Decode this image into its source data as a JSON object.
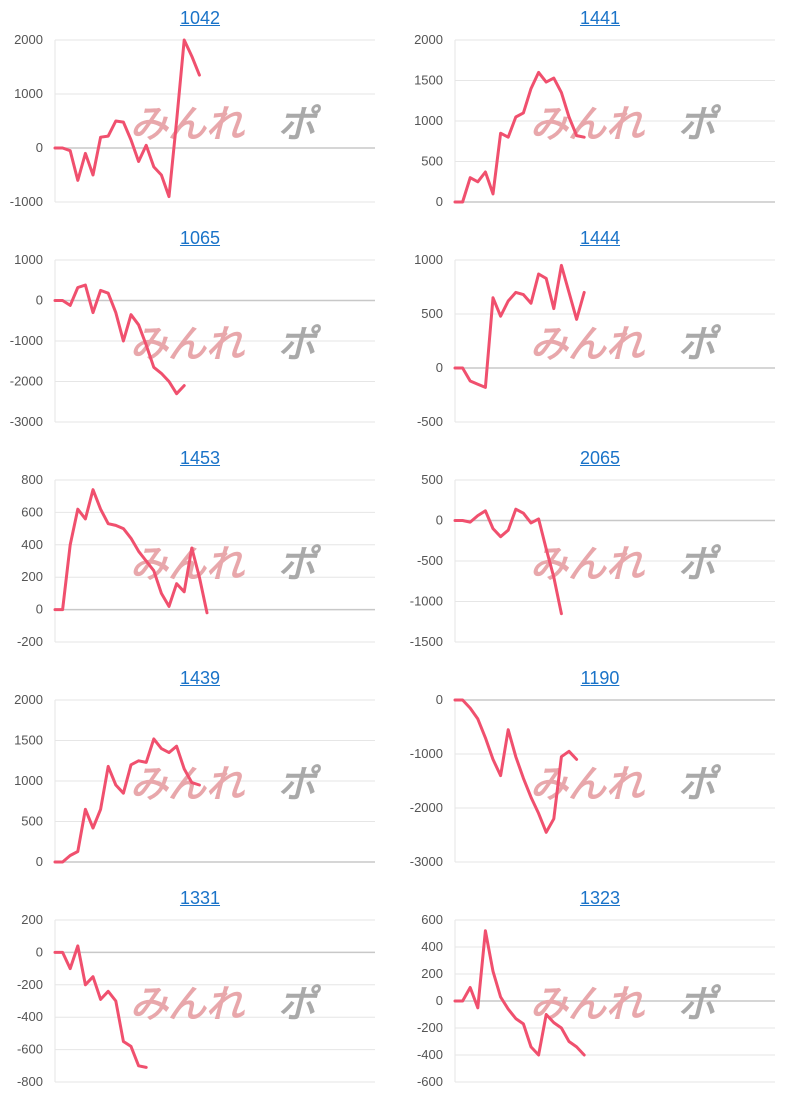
{
  "colors": {
    "line": "#f0506e",
    "grid": "#e6e6e6",
    "zero": "#c8c8c8",
    "title": "#1a73c8"
  },
  "watermark": {
    "part1": "みんれ",
    "part2": "ポ"
  },
  "chart_data": [
    {
      "type": "line",
      "title": "1042",
      "ylim": [
        -1000,
        2000
      ],
      "ticks": [
        2000,
        1000,
        0,
        -1000
      ],
      "values": [
        0,
        0,
        -50,
        -600,
        -100,
        -500,
        200,
        220,
        500,
        480,
        150,
        -250,
        50,
        -350,
        -500,
        -900,
        500,
        2000,
        1700,
        1350
      ]
    },
    {
      "type": "line",
      "title": "1441",
      "ylim": [
        0,
        2000
      ],
      "ticks": [
        2000,
        1500,
        1000,
        500,
        0
      ],
      "values": [
        0,
        0,
        300,
        250,
        370,
        100,
        850,
        800,
        1050,
        1100,
        1400,
        1600,
        1480,
        1530,
        1350,
        1050,
        820,
        800
      ]
    },
    {
      "type": "line",
      "title": "1065",
      "ylim": [
        -3000,
        1000
      ],
      "ticks": [
        1000,
        0,
        -1000,
        -2000,
        -3000
      ],
      "values": [
        0,
        0,
        -120,
        320,
        380,
        -300,
        250,
        180,
        -300,
        -1000,
        -350,
        -600,
        -1100,
        -1650,
        -1800,
        -2000,
        -2300,
        -2100
      ]
    },
    {
      "type": "line",
      "title": "1444",
      "ylim": [
        -500,
        1000
      ],
      "ticks": [
        1000,
        500,
        0,
        -500
      ],
      "values": [
        0,
        0,
        -120,
        -150,
        -180,
        650,
        480,
        620,
        700,
        680,
        600,
        870,
        830,
        550,
        950,
        700,
        450,
        700
      ]
    },
    {
      "type": "line",
      "title": "1453",
      "ylim": [
        -200,
        800
      ],
      "ticks": [
        800,
        600,
        400,
        200,
        0,
        -200
      ],
      "values": [
        0,
        0,
        400,
        620,
        560,
        740,
        620,
        530,
        520,
        500,
        440,
        360,
        300,
        240,
        100,
        20,
        160,
        110,
        380,
        200,
        -20
      ]
    },
    {
      "type": "line",
      "title": "2065",
      "ylim": [
        -1500,
        500
      ],
      "ticks": [
        500,
        0,
        -500,
        -1000,
        -1500
      ],
      "values": [
        0,
        0,
        -20,
        60,
        120,
        -100,
        -200,
        -120,
        140,
        90,
        -30,
        20,
        -350,
        -700,
        -1150
      ]
    },
    {
      "type": "line",
      "title": "1439",
      "ylim": [
        0,
        2000
      ],
      "ticks": [
        2000,
        1500,
        1000,
        500,
        0
      ],
      "values": [
        0,
        0,
        80,
        130,
        650,
        420,
        650,
        1180,
        950,
        850,
        1200,
        1250,
        1230,
        1520,
        1400,
        1350,
        1430,
        1150,
        980,
        950
      ]
    },
    {
      "type": "line",
      "title": "1190",
      "ylim": [
        -3000,
        0
      ],
      "ticks": [
        0,
        -1000,
        -2000,
        -3000
      ],
      "values": [
        0,
        0,
        -150,
        -350,
        -700,
        -1100,
        -1400,
        -550,
        -1050,
        -1450,
        -1800,
        -2100,
        -2450,
        -2200,
        -1050,
        -950,
        -1100
      ]
    },
    {
      "type": "line",
      "title": "1331",
      "ylim": [
        -800,
        200
      ],
      "ticks": [
        200,
        0,
        -200,
        -400,
        -600,
        -800
      ],
      "values": [
        0,
        0,
        -100,
        40,
        -200,
        -150,
        -290,
        -240,
        -300,
        -550,
        -580,
        -700,
        -710
      ]
    },
    {
      "type": "line",
      "title": "1323",
      "ylim": [
        -600,
        600
      ],
      "ticks": [
        600,
        400,
        200,
        0,
        -200,
        -400,
        -600
      ],
      "values": [
        0,
        0,
        100,
        -50,
        520,
        220,
        30,
        -60,
        -130,
        -170,
        -340,
        -400,
        -100,
        -160,
        -200,
        -300,
        -340,
        -400
      ]
    }
  ]
}
